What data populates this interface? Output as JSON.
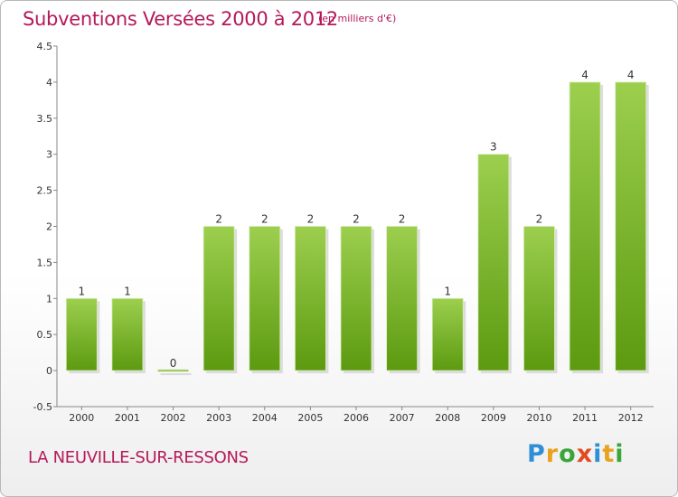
{
  "header": {
    "title": "Subventions Versées 2000 à 2012",
    "unit": "(en milliers d'€)"
  },
  "footer": {
    "commune": "LA NEUVILLE-SUR-RESSONS",
    "logo_text": "Proxiti",
    "logo_colors": [
      "#2e8fd6",
      "#e9a21f",
      "#3aa63a",
      "#e24a1f",
      "#2e8fd6",
      "#e9a21f",
      "#3aa63a"
    ]
  },
  "chart_data": {
    "type": "bar",
    "title": "Subventions Versées 2000 à 2012",
    "xlabel": "",
    "ylabel": "",
    "categories": [
      "2000",
      "2001",
      "2002",
      "2003",
      "2004",
      "2005",
      "2006",
      "2007",
      "2008",
      "2009",
      "2010",
      "2011",
      "2012"
    ],
    "values": [
      1,
      1,
      0,
      2,
      2,
      2,
      2,
      2,
      1,
      3,
      2,
      4,
      4
    ],
    "data_labels": [
      "1",
      "1",
      "0",
      "2",
      "2",
      "2",
      "2",
      "2",
      "1",
      "3",
      "2",
      "4",
      "4"
    ],
    "ylim": [
      -0.5,
      4.5
    ],
    "yticks": [
      -0.5,
      0,
      0.5,
      1,
      1.5,
      2,
      2.5,
      3,
      3.5,
      4,
      4.5
    ],
    "ytick_labels": [
      "-0.5",
      "0",
      "0.5",
      "1",
      "1.5",
      "2",
      "2.5",
      "3",
      "3.5",
      "4",
      "4.5"
    ],
    "grid": false,
    "legend": "none",
    "bar_color_top": "#9ccf4e",
    "bar_color_bottom": "#5c9a10",
    "axis_color": "#888888"
  }
}
